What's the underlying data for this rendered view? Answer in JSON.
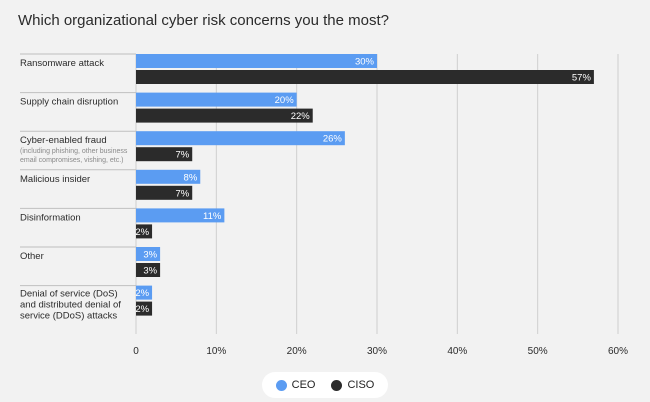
{
  "colors": {
    "ceo": "#5b9cf2",
    "ciso": "#2b2b2b",
    "grid": "#cfcfcf",
    "separator": "#bfbfbf",
    "text": "#2b2b2b",
    "background": "#f2f2f2"
  },
  "chart_data": {
    "type": "bar",
    "orientation": "horizontal",
    "title": "Which organizational cyber risk concerns you the most?",
    "categories": [
      {
        "label_lines": [
          "Ransomware attack"
        ],
        "note_lines": []
      },
      {
        "label_lines": [
          "Supply chain disruption"
        ],
        "note_lines": []
      },
      {
        "label_lines": [
          "Cyber-enabled fraud"
        ],
        "note_lines": [
          "(including phishing, other business",
          "email compromises, vishing, etc.)"
        ]
      },
      {
        "label_lines": [
          "Malicious insider"
        ],
        "note_lines": []
      },
      {
        "label_lines": [
          "Disinformation"
        ],
        "note_lines": []
      },
      {
        "label_lines": [
          "Other"
        ],
        "note_lines": []
      },
      {
        "label_lines": [
          "Denial of service (DoS)",
          "and distributed denial of",
          "service (DDoS) attacks"
        ],
        "note_lines": []
      }
    ],
    "series": [
      {
        "name": "CEO",
        "values": [
          30,
          20,
          26,
          8,
          11,
          3,
          2
        ]
      },
      {
        "name": "CISO",
        "values": [
          57,
          22,
          7,
          7,
          2,
          3,
          2
        ]
      }
    ],
    "value_suffix": "%",
    "xlim": [
      0,
      60
    ],
    "xticks": [
      0,
      10,
      20,
      30,
      40,
      50,
      60
    ],
    "xtick_labels": [
      "0",
      "10%",
      "20%",
      "30%",
      "40%",
      "50%",
      "60%"
    ],
    "grid": true,
    "legend": {
      "placement": "bottom-center",
      "labels": [
        "CEO",
        "CISO"
      ]
    }
  }
}
